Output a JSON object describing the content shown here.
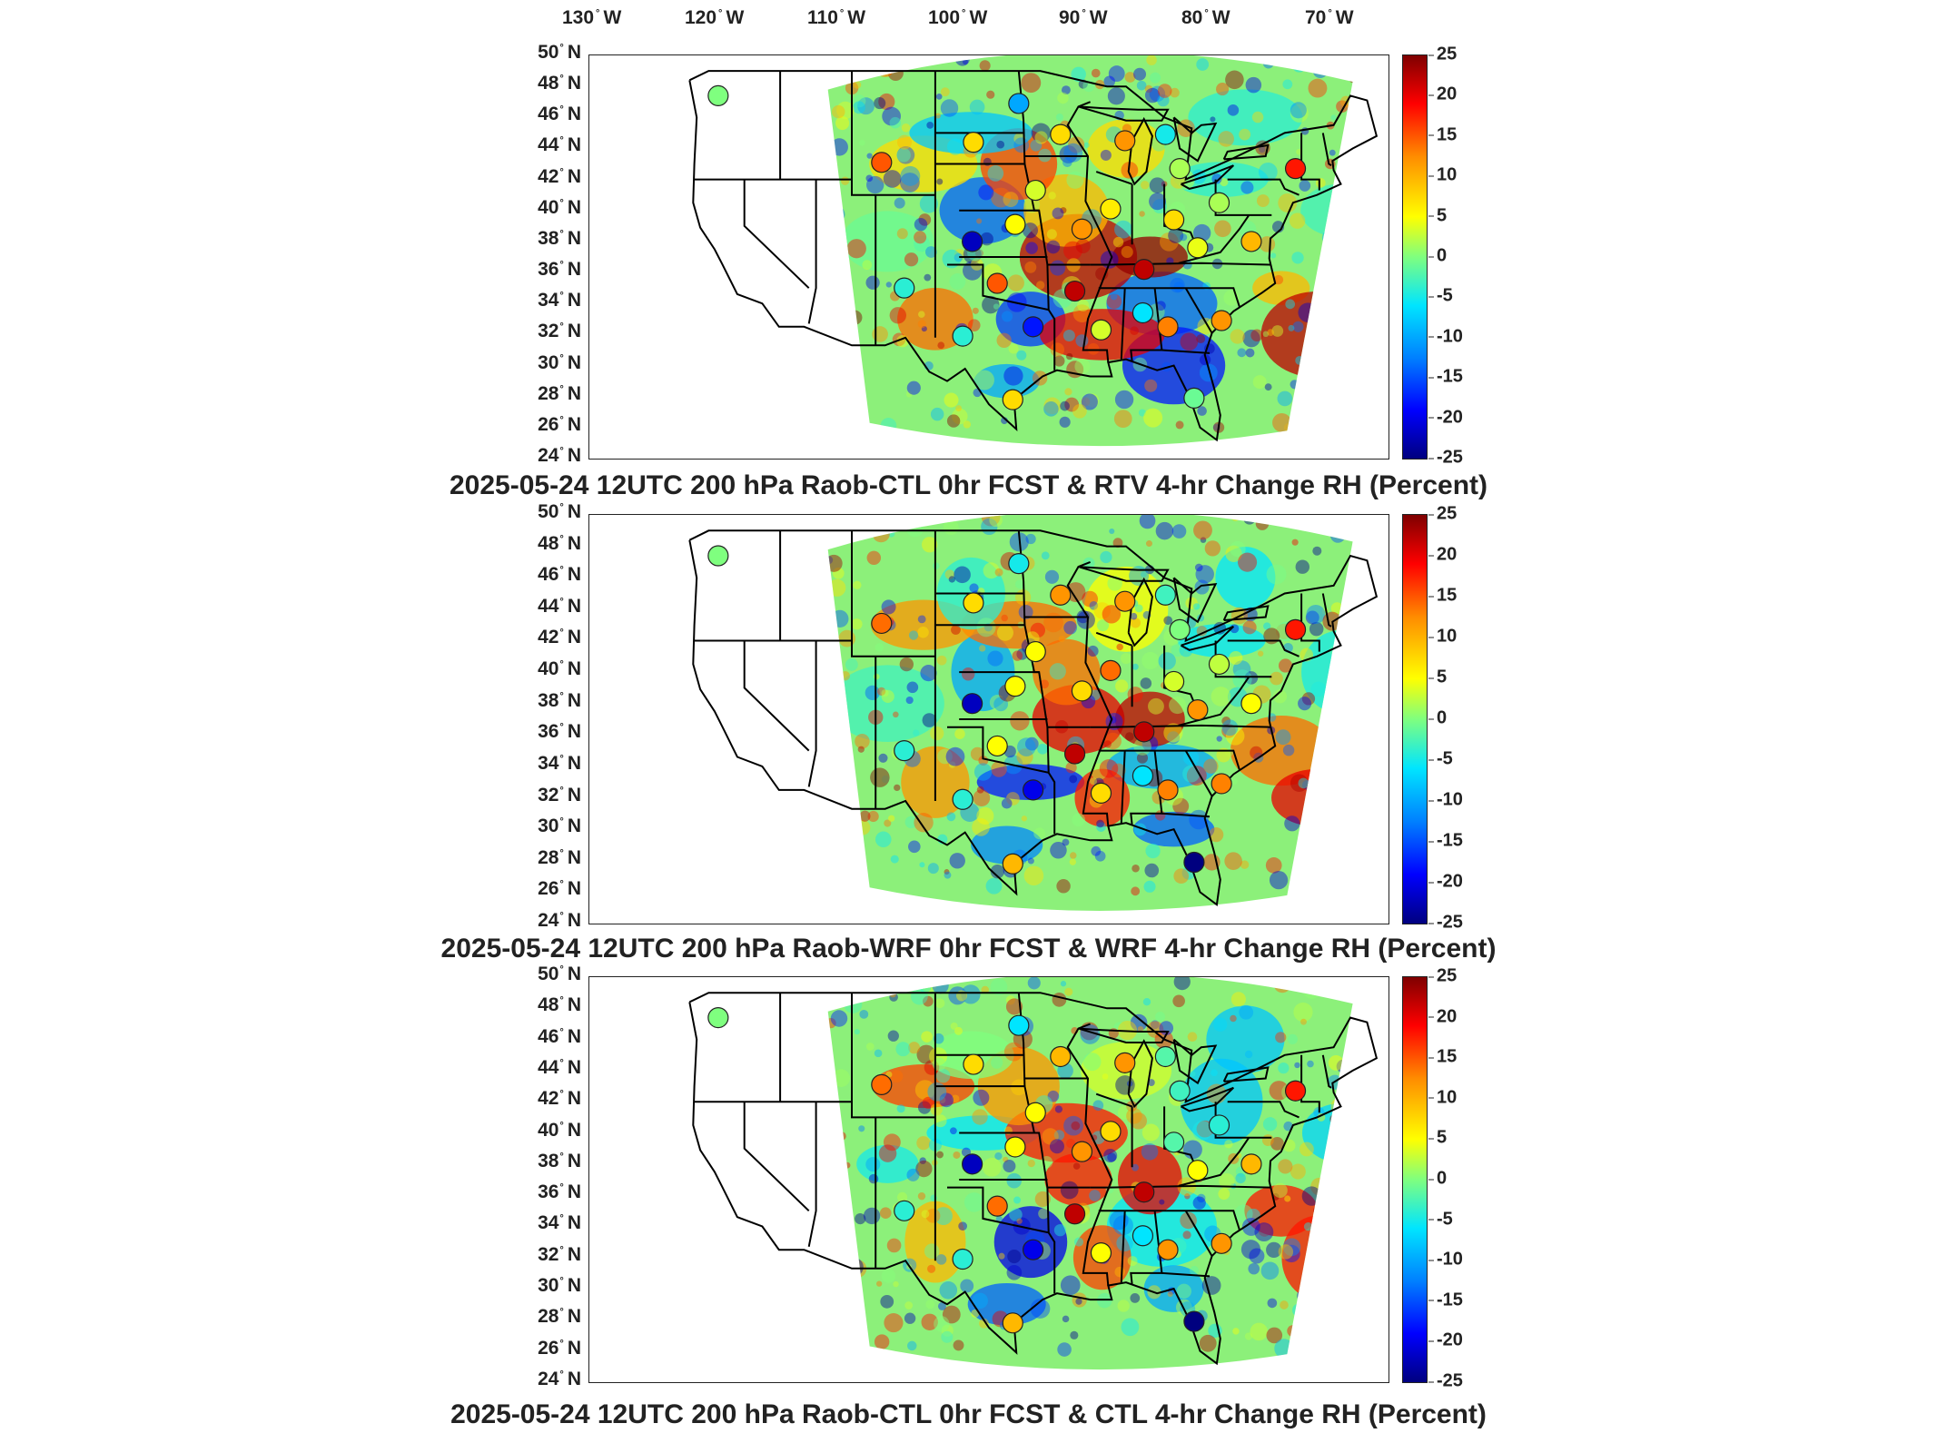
{
  "longitude_labels": [
    {
      "deg": "130",
      "hemi": "W"
    },
    {
      "deg": "120",
      "hemi": "W"
    },
    {
      "deg": "110",
      "hemi": "W"
    },
    {
      "deg": "100",
      "hemi": "W"
    },
    {
      "deg": "90",
      "hemi": "W"
    },
    {
      "deg": "80",
      "hemi": "W"
    },
    {
      "deg": "70",
      "hemi": "W"
    }
  ],
  "latitude_labels": [
    {
      "deg": "50",
      "hemi": "N"
    },
    {
      "deg": "48",
      "hemi": "N"
    },
    {
      "deg": "46",
      "hemi": "N"
    },
    {
      "deg": "44",
      "hemi": "N"
    },
    {
      "deg": "42",
      "hemi": "N"
    },
    {
      "deg": "40",
      "hemi": "N"
    },
    {
      "deg": "38",
      "hemi": "N"
    },
    {
      "deg": "36",
      "hemi": "N"
    },
    {
      "deg": "34",
      "hemi": "N"
    },
    {
      "deg": "32",
      "hemi": "N"
    },
    {
      "deg": "30",
      "hemi": "N"
    },
    {
      "deg": "28",
      "hemi": "N"
    },
    {
      "deg": "26",
      "hemi": "N"
    },
    {
      "deg": "24",
      "hemi": "N"
    }
  ],
  "colorbar": {
    "ticks": [
      "25",
      "20",
      "15",
      "10",
      "5",
      "0",
      "-5",
      "-10",
      "-15",
      "-20",
      "-25"
    ],
    "colors": [
      "#7f0000",
      "#ff0000",
      "#ff8c00",
      "#ffff00",
      "#7fff7f",
      "#00e5ff",
      "#0080ff",
      "#0000ff",
      "#00007f"
    ]
  },
  "panels": [
    {
      "title": "2025-05-24 12UTC 200 hPa Raob-CTL 0hr FCST & RTV 4-hr Change RH (Percent)"
    },
    {
      "title": "2025-05-24 12UTC 200 hPa Raob-WRF 0hr FCST & WRF 4-hr Change RH (Percent)"
    },
    {
      "title": "2025-05-24 12UTC 200 hPa Raob-CTL 0hr FCST & CTL 4-hr Change RH (Percent)"
    }
  ],
  "raob_stations": [
    {
      "lon": -122.2,
      "lat": 47.4
    },
    {
      "lon": -97.0,
      "lat": 46.9
    },
    {
      "lon": -100.8,
      "lat": 44.4
    },
    {
      "lon": -93.5,
      "lat": 44.9
    },
    {
      "lon": -88.1,
      "lat": 44.5
    },
    {
      "lon": -84.7,
      "lat": 44.9
    },
    {
      "lon": -108.5,
      "lat": 43.1
    },
    {
      "lon": -83.5,
      "lat": 42.7
    },
    {
      "lon": -73.8,
      "lat": 42.7
    },
    {
      "lon": -95.6,
      "lat": 41.3
    },
    {
      "lon": -89.3,
      "lat": 40.1
    },
    {
      "lon": -80.2,
      "lat": 40.5
    },
    {
      "lon": -84.0,
      "lat": 39.4
    },
    {
      "lon": -97.3,
      "lat": 39.1
    },
    {
      "lon": -100.9,
      "lat": 38.0
    },
    {
      "lon": -91.7,
      "lat": 38.8
    },
    {
      "lon": -82.0,
      "lat": 37.6
    },
    {
      "lon": -77.5,
      "lat": 38.0
    },
    {
      "lon": -86.5,
      "lat": 36.2
    },
    {
      "lon": -92.3,
      "lat": 34.8
    },
    {
      "lon": -98.8,
      "lat": 35.3
    },
    {
      "lon": -106.6,
      "lat": 35.0
    },
    {
      "lon": -95.8,
      "lat": 32.5
    },
    {
      "lon": -101.7,
      "lat": 31.9
    },
    {
      "lon": -90.1,
      "lat": 32.3
    },
    {
      "lon": -84.5,
      "lat": 32.5
    },
    {
      "lon": -86.6,
      "lat": 33.4
    },
    {
      "lon": -80.0,
      "lat": 32.9
    },
    {
      "lon": -97.5,
      "lat": 27.8
    },
    {
      "lon": -82.3,
      "lat": 27.9
    }
  ]
}
